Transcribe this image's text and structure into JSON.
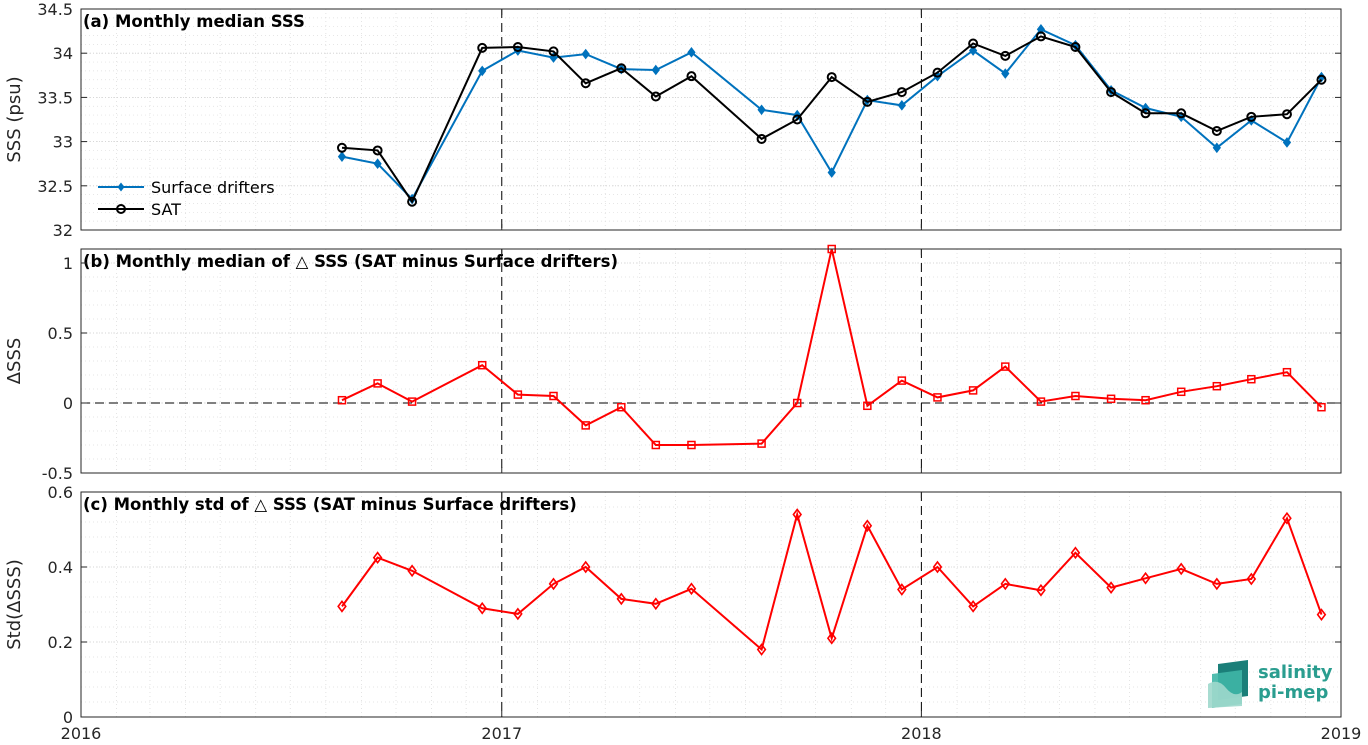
{
  "chart_data": [
    {
      "type": "line",
      "title": "(a) Monthly median SSS",
      "ylabel": "SSS (psu)",
      "ylim": [
        32,
        34.5
      ],
      "yticks": [
        "32",
        "32.5",
        "33",
        "33.5",
        "34",
        "34.5"
      ],
      "xlim": [
        "2016-01-01",
        "2019-01-01"
      ],
      "xticks": [
        "2016",
        "2017",
        "2018",
        "2019"
      ],
      "grid": true,
      "legend_position": "lower-left",
      "series": [
        {
          "name": "Surface drifters",
          "color": "#0072BD",
          "marker": "diamond-filled",
          "x": [
            "2016-08-15",
            "2016-09-15",
            "2016-10-15",
            "2016-12-15",
            "2017-01-15",
            "2017-02-15",
            "2017-03-15",
            "2017-04-15",
            "2017-05-15",
            "2017-06-15",
            "2017-08-15",
            "2017-09-15",
            "2017-10-15",
            "2017-11-15",
            "2017-12-15",
            "2018-01-15",
            "2018-02-15",
            "2018-03-15",
            "2018-04-15",
            "2018-05-15",
            "2018-06-15",
            "2018-07-15",
            "2018-08-15",
            "2018-09-15",
            "2018-10-15",
            "2018-11-15",
            "2018-12-15"
          ],
          "values": [
            32.83,
            32.75,
            32.35,
            33.8,
            34.03,
            33.95,
            33.99,
            33.82,
            33.81,
            34.01,
            33.36,
            33.3,
            32.65,
            33.47,
            33.41,
            33.74,
            34.03,
            33.77,
            34.27,
            34.09,
            33.58,
            33.38,
            33.28,
            32.93,
            33.24,
            32.99,
            33.73
          ]
        },
        {
          "name": "SAT",
          "color": "#000000",
          "marker": "circle-open",
          "x": [
            "2016-08-15",
            "2016-09-15",
            "2016-10-15",
            "2016-12-15",
            "2017-01-15",
            "2017-02-15",
            "2017-03-15",
            "2017-04-15",
            "2017-05-15",
            "2017-06-15",
            "2017-08-15",
            "2017-09-15",
            "2017-10-15",
            "2017-11-15",
            "2017-12-15",
            "2018-01-15",
            "2018-02-15",
            "2018-03-15",
            "2018-04-15",
            "2018-05-15",
            "2018-06-15",
            "2018-07-15",
            "2018-08-15",
            "2018-09-15",
            "2018-10-15",
            "2018-11-15",
            "2018-12-15"
          ],
          "values": [
            32.93,
            32.9,
            32.32,
            34.06,
            34.07,
            34.02,
            33.66,
            33.83,
            33.51,
            33.74,
            33.03,
            33.25,
            33.73,
            33.45,
            33.56,
            33.78,
            34.11,
            33.97,
            34.19,
            34.07,
            33.56,
            33.32,
            33.32,
            33.12,
            33.28,
            33.31,
            33.7
          ]
        }
      ]
    },
    {
      "type": "line",
      "title": "(b) Monthly median of △ SSS (SAT minus Surface drifters)",
      "ylabel": "ΔSSS",
      "ylim": [
        -0.5,
        1.1
      ],
      "yticks": [
        "-0.5",
        "0",
        "0.5",
        "1"
      ],
      "xlim": [
        "2016-01-01",
        "2019-01-01"
      ],
      "grid": true,
      "zero_line": true,
      "series": [
        {
          "color": "#FF0000",
          "marker": "square-open",
          "x": [
            "2016-08-15",
            "2016-09-15",
            "2016-10-15",
            "2016-12-15",
            "2017-01-15",
            "2017-02-15",
            "2017-03-15",
            "2017-04-15",
            "2017-05-15",
            "2017-06-15",
            "2017-08-15",
            "2017-09-15",
            "2017-10-15",
            "2017-11-15",
            "2017-12-15",
            "2018-01-15",
            "2018-02-15",
            "2018-03-15",
            "2018-04-15",
            "2018-05-15",
            "2018-06-15",
            "2018-07-15",
            "2018-08-15",
            "2018-09-15",
            "2018-10-15",
            "2018-11-15",
            "2018-12-15"
          ],
          "values": [
            0.02,
            0.14,
            0.01,
            0.27,
            0.06,
            0.05,
            -0.16,
            -0.03,
            -0.3,
            -0.3,
            -0.29,
            0.0,
            1.1,
            -0.02,
            0.16,
            0.04,
            0.09,
            0.26,
            0.01,
            0.05,
            0.03,
            0.02,
            0.08,
            0.12,
            0.17,
            0.22,
            -0.03
          ]
        }
      ]
    },
    {
      "type": "line",
      "title": "(c) Monthly std of △ SSS (SAT minus Surface drifters)",
      "ylabel": "Std(ΔSSS)",
      "ylim": [
        0,
        0.6
      ],
      "yticks": [
        "0",
        "0.2",
        "0.4",
        "0.6"
      ],
      "xlim": [
        "2016-01-01",
        "2019-01-01"
      ],
      "xticks": [
        "2016",
        "2017",
        "2018",
        "2019"
      ],
      "grid": true,
      "series": [
        {
          "color": "#FF0000",
          "marker": "diamond-open",
          "x": [
            "2016-08-15",
            "2016-09-15",
            "2016-10-15",
            "2016-12-15",
            "2017-01-15",
            "2017-02-15",
            "2017-03-15",
            "2017-04-15",
            "2017-05-15",
            "2017-06-15",
            "2017-08-15",
            "2017-09-15",
            "2017-10-15",
            "2017-11-15",
            "2017-12-15",
            "2018-01-15",
            "2018-02-15",
            "2018-03-15",
            "2018-04-15",
            "2018-05-15",
            "2018-06-15",
            "2018-07-15",
            "2018-08-15",
            "2018-09-15",
            "2018-10-15",
            "2018-11-15",
            "2018-12-15"
          ],
          "values": [
            0.295,
            0.425,
            0.39,
            0.29,
            0.275,
            0.355,
            0.4,
            0.315,
            0.302,
            0.342,
            0.18,
            0.54,
            0.21,
            0.51,
            0.34,
            0.4,
            0.295,
            0.355,
            0.338,
            0.438,
            0.345,
            0.37,
            0.395,
            0.355,
            0.368,
            0.53,
            0.273
          ]
        }
      ]
    }
  ],
  "logo": {
    "line1": "salinity",
    "line2": "pi-mep"
  }
}
